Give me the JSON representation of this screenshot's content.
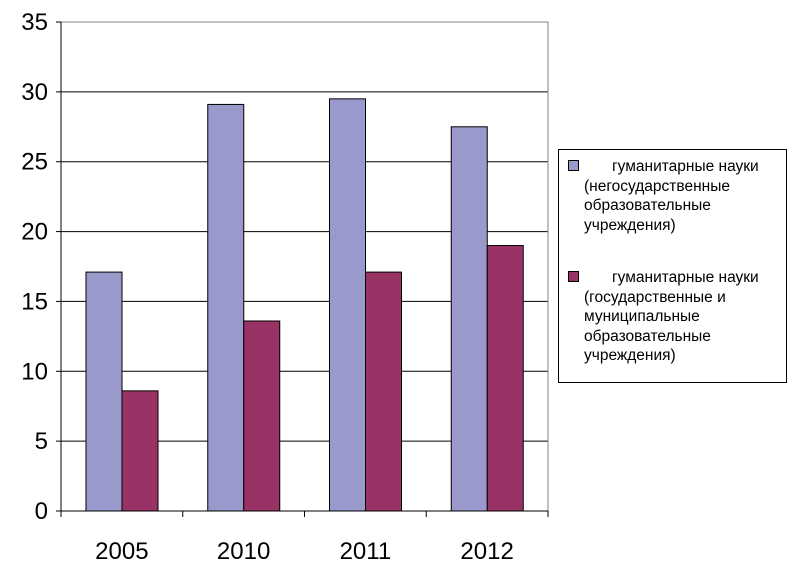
{
  "chart_data": {
    "type": "bar",
    "categories": [
      "2005",
      "2010",
      "2011",
      "2012"
    ],
    "series": [
      {
        "name": "гуманитарные науки\n(негосударственные\nобразовательные\nучреждения)",
        "values": [
          17.1,
          29.1,
          29.5,
          27.5
        ],
        "color": "#9999CC"
      },
      {
        "name": "гуманитарные науки\n(государственные и\nмуниципальные\nобразовательные\nучреждения)",
        "values": [
          8.6,
          13.6,
          17.1,
          19.0
        ],
        "color": "#993366"
      }
    ],
    "y_ticks": [
      "0",
      "5",
      "10",
      "15",
      "20",
      "25",
      "30",
      "35"
    ],
    "ylim": [
      0,
      35
    ],
    "grid": true,
    "legend_position": "right"
  }
}
